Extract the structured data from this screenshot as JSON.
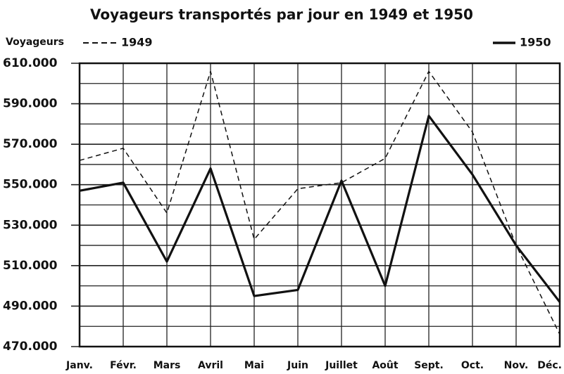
{
  "chart_data": {
    "type": "line",
    "title": "Voyageurs transportés par jour en 1949 et 1950",
    "y_label": "Voyageurs",
    "categories": [
      "Janv.",
      "Févr.",
      "Mars",
      "Avril",
      "Mai",
      "Juin",
      "Juillet",
      "Août",
      "Sept.",
      "Oct.",
      "Nov.",
      "Déc."
    ],
    "series": [
      {
        "name": "1949",
        "color": "#111111",
        "dash": true,
        "values": [
          562000,
          568000,
          536000,
          606000,
          523000,
          548000,
          551000,
          563000,
          606000,
          576000,
          520000,
          476000
        ]
      },
      {
        "name": "1950",
        "color": "#111111",
        "dash": false,
        "values": [
          547000,
          551000,
          512000,
          558000,
          495000,
          498000,
          552000,
          500000,
          584000,
          555000,
          520000,
          492000
        ]
      }
    ],
    "ylim": [
      470000,
      610000
    ],
    "yticks": [
      {
        "value": 470000,
        "label": "470.000"
      },
      {
        "value": 490000,
        "label": "490.000"
      },
      {
        "value": 510000,
        "label": "510.000"
      },
      {
        "value": 530000,
        "label": "530.000"
      },
      {
        "value": 550000,
        "label": "550.000"
      },
      {
        "value": 570000,
        "label": "570.000"
      },
      {
        "value": 590000,
        "label": "590.000"
      },
      {
        "value": 610000,
        "label": "610.000"
      }
    ],
    "minor_yticks": [
      480000,
      500000,
      520000,
      540000,
      560000,
      580000,
      600000
    ],
    "grid": true
  }
}
